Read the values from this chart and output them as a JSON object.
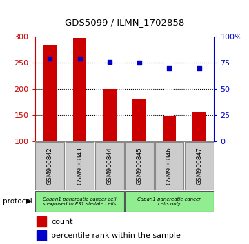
{
  "title": "GDS5099 / ILMN_1702858",
  "categories": [
    "GSM900842",
    "GSM900843",
    "GSM900844",
    "GSM900845",
    "GSM900846",
    "GSM900847"
  ],
  "bar_values": [
    283,
    298,
    200,
    180,
    148,
    155
  ],
  "bar_base": 100,
  "percentile_values": [
    79,
    79,
    76,
    75,
    70,
    70
  ],
  "left_ylim": [
    100,
    300
  ],
  "right_ylim": [
    0,
    100
  ],
  "left_yticks": [
    100,
    150,
    200,
    250,
    300
  ],
  "right_yticks": [
    0,
    25,
    50,
    75,
    100
  ],
  "right_yticklabels": [
    "0",
    "25",
    "50",
    "75",
    "100%"
  ],
  "bar_color": "#cc0000",
  "dot_color": "#0000cc",
  "background_color": "#ffffff",
  "label_bg_color": "#cccccc",
  "protocol_color": "#90ee90",
  "protocol_border": "#555555",
  "left_axis_color": "#cc0000",
  "right_axis_color": "#0000cc",
  "legend_count_label": "count",
  "legend_percentile_label": "percentile rank within the sample",
  "protocol_label": "protocol",
  "group1_label": "Capan1 pancreatic cancer cell\ns exposed to PS1 stellate cells",
  "group2_label": "Capan1 pancreatic cancer\ncells only"
}
